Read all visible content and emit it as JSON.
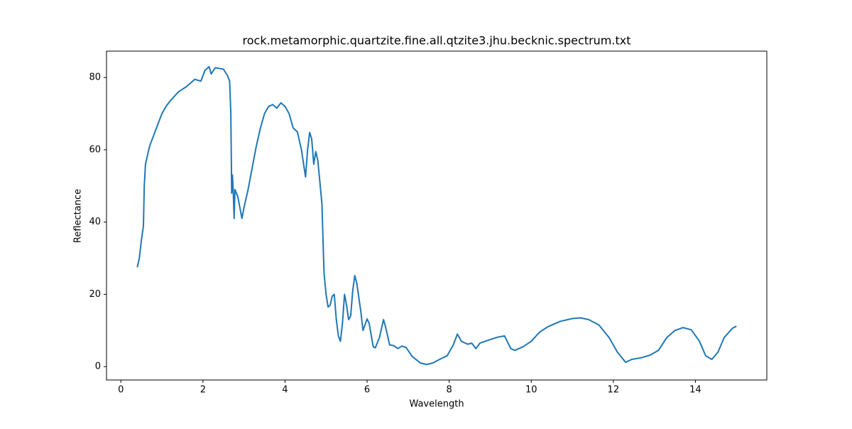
{
  "chart_data": {
    "type": "line",
    "title": "rock.metamorphic.quartzite.fine.all.qtzite3.jhu.becknic.spectrum.txt",
    "xlabel": "Wavelength",
    "ylabel": "Reflectance",
    "x": [
      0.4,
      0.45,
      0.5,
      0.55,
      0.57,
      0.6,
      0.7,
      0.8,
      0.9,
      1.0,
      1.1,
      1.2,
      1.4,
      1.6,
      1.8,
      1.95,
      2.05,
      2.15,
      2.2,
      2.3,
      2.5,
      2.6,
      2.65,
      2.68,
      2.7,
      2.72,
      2.74,
      2.76,
      2.78,
      2.85,
      2.95,
      3.0,
      3.1,
      3.2,
      3.3,
      3.4,
      3.5,
      3.6,
      3.7,
      3.8,
      3.9,
      4.0,
      4.1,
      4.2,
      4.3,
      4.4,
      4.5,
      4.55,
      4.6,
      4.65,
      4.7,
      4.75,
      4.8,
      4.9,
      4.95,
      5.0,
      5.05,
      5.1,
      5.15,
      5.2,
      5.25,
      5.3,
      5.35,
      5.4,
      5.45,
      5.5,
      5.55,
      5.6,
      5.65,
      5.7,
      5.75,
      5.85,
      5.9,
      6.0,
      6.05,
      6.15,
      6.2,
      6.3,
      6.4,
      6.45,
      6.55,
      6.65,
      6.75,
      6.85,
      6.95,
      7.1,
      7.3,
      7.45,
      7.6,
      7.8,
      7.95,
      8.1,
      8.2,
      8.3,
      8.45,
      8.55,
      8.65,
      8.75,
      9.0,
      9.2,
      9.35,
      9.5,
      9.6,
      9.8,
      10.0,
      10.2,
      10.4,
      10.7,
      11.0,
      11.2,
      11.4,
      11.65,
      11.9,
      12.1,
      12.3,
      12.45,
      12.7,
      12.9,
      13.1,
      13.3,
      13.5,
      13.7,
      13.9,
      14.1,
      14.25,
      14.4,
      14.55,
      14.7,
      14.9,
      15.0
    ],
    "series": [
      {
        "color": "#1f77b4",
        "values": [
          27.5,
          30,
          35,
          39,
          50,
          56,
          61,
          64,
          67,
          70,
          72,
          73.5,
          76,
          77.5,
          79.5,
          79,
          82,
          83,
          81,
          82.7,
          82.3,
          80.5,
          79,
          70,
          48,
          53,
          48,
          41,
          49,
          47,
          41,
          44,
          49,
          55,
          61,
          66,
          70,
          72,
          72.5,
          71.5,
          73,
          72,
          70,
          66,
          65,
          60,
          52.5,
          60,
          64.8,
          63,
          56,
          59.5,
          57,
          45,
          26,
          20,
          16.5,
          17,
          19.5,
          20,
          13,
          8.5,
          7,
          12,
          20,
          17,
          13,
          14,
          21,
          25.2,
          23,
          15,
          10,
          13.2,
          12,
          5.5,
          5.2,
          8,
          13,
          11,
          6,
          5.8,
          5,
          5.7,
          5.3,
          2.8,
          1,
          0.6,
          1,
          2.2,
          3,
          6,
          9,
          7,
          6.2,
          6.5,
          5,
          6.5,
          7.5,
          8.2,
          8.5,
          5,
          4.5,
          5.5,
          7,
          9.5,
          11,
          12.5,
          13.3,
          13.5,
          13,
          11.5,
          8,
          4,
          1.2,
          2,
          2.5,
          3.2,
          4.5,
          8,
          10,
          10.8,
          10.2,
          7,
          3,
          2,
          4,
          8,
          10.6,
          11.2
        ]
      }
    ],
    "xlim": [
      -0.35,
      15.74
    ],
    "ylim": [
      -3.7,
      87.3
    ],
    "xticks": [
      0,
      2,
      4,
      6,
      8,
      10,
      12,
      14
    ],
    "yticks": [
      0,
      20,
      40,
      60,
      80
    ],
    "grid": false
  }
}
